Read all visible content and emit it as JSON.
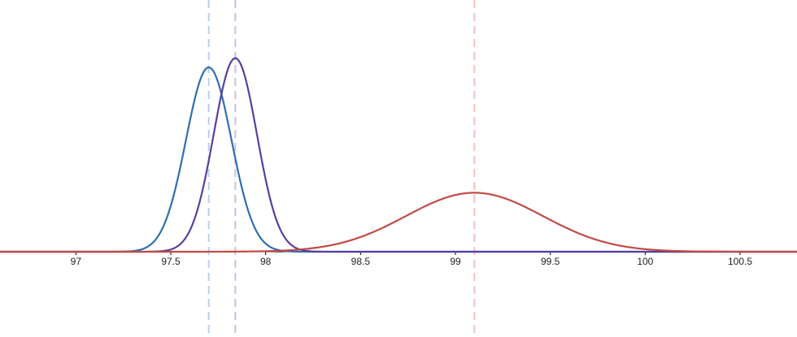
{
  "chart_data": {
    "type": "line",
    "title": "",
    "xlabel": "",
    "ylabel": "",
    "xlim": [
      96.6,
      100.8
    ],
    "x_ticks": [
      97,
      97.5,
      98,
      98.5,
      99,
      99.5,
      100,
      100.5
    ],
    "x_tick_labels": [
      "97",
      "97.5",
      "98",
      "98.5",
      "99",
      "99.5",
      "100",
      "100.5"
    ],
    "grid": false,
    "legend": "none",
    "series": [
      {
        "curve": "normal-density",
        "mean": 97.7,
        "sd": 0.12,
        "peak": 1.0,
        "color": "#2f6fb0",
        "marker_color": "#b8d0ea"
      },
      {
        "curve": "normal-density",
        "mean": 97.84,
        "sd": 0.114,
        "peak": 1.05,
        "color": "#5b3ea0",
        "marker_color": "#cac2df"
      },
      {
        "curve": "normal-density",
        "mean": 99.1,
        "sd": 0.36,
        "peak": 0.32,
        "color": "#c24a45",
        "marker_color": "#f0c2bf"
      }
    ]
  }
}
